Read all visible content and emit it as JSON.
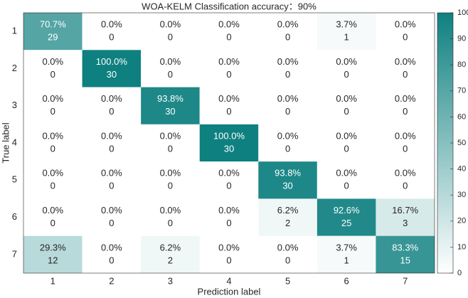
{
  "chart_data": {
    "type": "heatmap",
    "title": "WOA-KELM Classification accuracy：90%",
    "x_label": "Prediction label",
    "y_label": "True label",
    "x_categories": [
      "1",
      "2",
      "3",
      "4",
      "5",
      "6",
      "7"
    ],
    "y_categories": [
      "1",
      "2",
      "3",
      "4",
      "5",
      "6",
      "7"
    ],
    "values": [
      [
        70.7,
        0,
        0,
        0,
        0,
        3.7,
        0
      ],
      [
        0,
        100,
        0,
        0,
        0,
        0,
        0
      ],
      [
        0,
        0,
        93.8,
        0,
        0,
        0,
        0
      ],
      [
        0,
        0,
        0,
        100,
        0,
        0,
        0
      ],
      [
        0,
        0,
        0,
        0,
        93.8,
        0,
        0
      ],
      [
        0,
        0,
        0,
        0,
        6.2,
        92.6,
        16.7
      ],
      [
        29.3,
        0,
        6.2,
        0,
        0,
        3.7,
        83.3
      ]
    ],
    "value_labels": [
      [
        "70.7%",
        "0.0%",
        "0.0%",
        "0.0%",
        "0.0%",
        "3.7%",
        "0.0%"
      ],
      [
        "0.0%",
        "100.0%",
        "0.0%",
        "0.0%",
        "0.0%",
        "0.0%",
        "0.0%"
      ],
      [
        "0.0%",
        "0.0%",
        "93.8%",
        "0.0%",
        "0.0%",
        "0.0%",
        "0.0%"
      ],
      [
        "0.0%",
        "0.0%",
        "0.0%",
        "100.0%",
        "0.0%",
        "0.0%",
        "0.0%"
      ],
      [
        "0.0%",
        "0.0%",
        "0.0%",
        "0.0%",
        "93.8%",
        "0.0%",
        "0.0%"
      ],
      [
        "0.0%",
        "0.0%",
        "0.0%",
        "0.0%",
        "6.2%",
        "92.6%",
        "16.7%"
      ],
      [
        "29.3%",
        "0.0%",
        "6.2%",
        "0.0%",
        "0.0%",
        "3.7%",
        "83.3%"
      ]
    ],
    "counts": [
      [
        29,
        0,
        0,
        0,
        0,
        1,
        0
      ],
      [
        0,
        30,
        0,
        0,
        0,
        0,
        0
      ],
      [
        0,
        0,
        30,
        0,
        0,
        0,
        0
      ],
      [
        0,
        0,
        0,
        30,
        0,
        0,
        0
      ],
      [
        0,
        0,
        0,
        0,
        30,
        0,
        0
      ],
      [
        0,
        0,
        0,
        0,
        2,
        25,
        3
      ],
      [
        12,
        0,
        2,
        0,
        0,
        1,
        15
      ]
    ],
    "colormap": [
      "#ffffff",
      "#0f8080"
    ],
    "clim": [
      0,
      100
    ],
    "cticks": [
      0,
      10,
      20,
      30,
      40,
      50,
      60,
      70,
      80,
      90,
      100
    ]
  }
}
